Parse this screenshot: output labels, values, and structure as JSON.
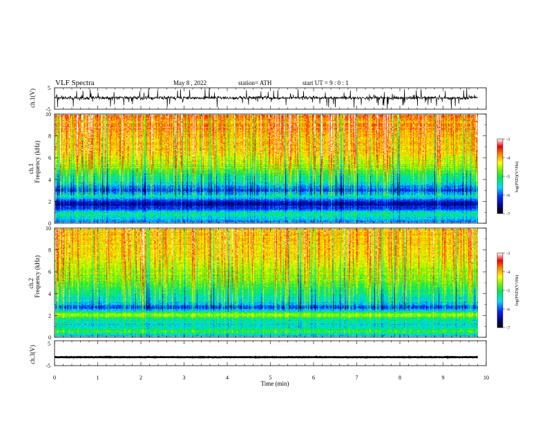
{
  "header": {
    "title": "VLF  Spectra",
    "date": "May 8 , 2022",
    "station": "station= ATH",
    "start_ut": "start  UT  =    9  : 0  : 1"
  },
  "chart_data": [
    {
      "type": "line",
      "panel": "ch1-waveform",
      "ylabel": "ch.1(V)",
      "y_ticks": [
        "5",
        "-5"
      ],
      "ylim": [
        -5,
        5
      ],
      "xlim": [
        0,
        10
      ],
      "data_end_min": 9.8,
      "signal": {
        "baseline": 0.3,
        "noise_amplitude": 1.6,
        "spike_amplitude": 4.5
      },
      "line_color": "#000000"
    },
    {
      "type": "heatmap",
      "panel": "ch1-spectrogram",
      "ylabel": "Frequency (kHz)",
      "channel_label": "ch.1",
      "y_ticks": [
        "0",
        "2",
        "4",
        "6",
        "8",
        "10"
      ],
      "ylim": [
        0,
        10
      ],
      "xlim": [
        0,
        10
      ],
      "colorbar": {
        "label": "log(PSD)(V²/Hz)",
        "ticks": [
          "-3",
          "-4",
          "-5",
          "-6",
          "-7"
        ],
        "range": [
          -7,
          -3
        ]
      },
      "profile": [
        {
          "f": 0.0,
          "v": -5.9
        },
        {
          "f": 0.3,
          "v": -5.6
        },
        {
          "f": 0.8,
          "v": -5.3
        },
        {
          "f": 1.3,
          "v": -6.2
        },
        {
          "f": 1.8,
          "v": -6.5
        },
        {
          "f": 2.4,
          "v": -5.4
        },
        {
          "f": 3.0,
          "v": -6.1
        },
        {
          "f": 3.6,
          "v": -5.5
        },
        {
          "f": 4.3,
          "v": -5.1
        },
        {
          "f": 5.2,
          "v": -4.6
        },
        {
          "f": 6.5,
          "v": -4.2
        },
        {
          "f": 8.0,
          "v": -3.9
        },
        {
          "f": 10.0,
          "v": -3.8
        }
      ]
    },
    {
      "type": "heatmap",
      "panel": "ch2-spectrogram",
      "ylabel": "Frequency (kHz)",
      "channel_label": "ch.2",
      "y_ticks": [
        "0",
        "2",
        "4",
        "6",
        "8",
        "10"
      ],
      "ylim": [
        0,
        10
      ],
      "xlim": [
        0,
        10
      ],
      "colorbar": {
        "label": "log(PSD)(V²/Hz)",
        "ticks": [
          "-3",
          "-4",
          "-5",
          "-6",
          "-7"
        ],
        "range": [
          -7,
          -3
        ]
      },
      "profile": [
        {
          "f": 0.0,
          "v": -5.7
        },
        {
          "f": 0.4,
          "v": -5.0
        },
        {
          "f": 1.0,
          "v": -5.5
        },
        {
          "f": 1.6,
          "v": -5.3
        },
        {
          "f": 2.0,
          "v": -4.5
        },
        {
          "f": 2.6,
          "v": -6.1
        },
        {
          "f": 3.2,
          "v": -5.5
        },
        {
          "f": 4.5,
          "v": -5.0
        },
        {
          "f": 6.0,
          "v": -4.5
        },
        {
          "f": 8.0,
          "v": -4.2
        },
        {
          "f": 10.0,
          "v": -4.0
        }
      ]
    },
    {
      "type": "line",
      "panel": "ch3-waveform",
      "ylabel": "ch.3(V)",
      "y_ticks": [
        "5",
        "-5"
      ],
      "ylim": [
        -5,
        5
      ],
      "xlim": [
        0,
        10
      ],
      "data_end_min": 9.8,
      "signal": {
        "baseline": -1.6,
        "noise_amplitude": 0.2
      },
      "line_color": "#000000",
      "xlabel": "Time  (min)",
      "x_ticks": [
        "0",
        "1",
        "2",
        "3",
        "4",
        "5",
        "6",
        "7",
        "8",
        "9",
        "10"
      ]
    }
  ]
}
